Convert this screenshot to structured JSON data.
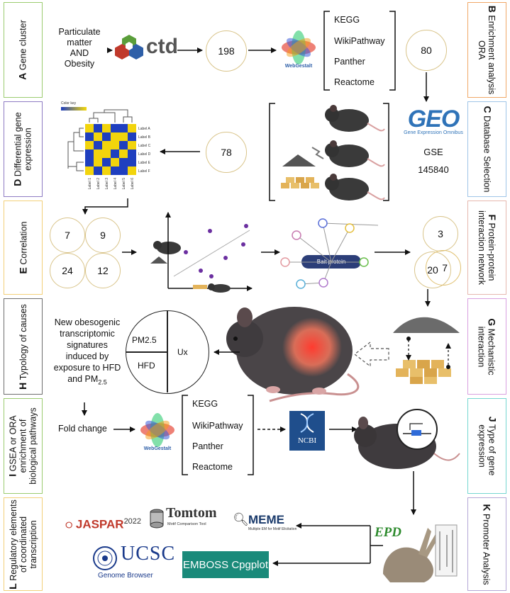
{
  "left_panels": [
    {
      "letter": "A",
      "lines": [
        "Gene cluster"
      ],
      "color": "#9ccc70"
    },
    {
      "letter": "D",
      "lines": [
        "Differential gene",
        "expression"
      ],
      "color": "#8e7cc3"
    },
    {
      "letter": "E",
      "lines": [
        "Correlation"
      ],
      "color": "#f3d07a"
    },
    {
      "letter": "H",
      "lines": [
        "Typology of causes"
      ],
      "color": "#6f6f6f"
    },
    {
      "letter": "I",
      "lines": [
        "GSEA or ORA",
        "enrichment of",
        "biological pathways"
      ],
      "color": "#9ccc70"
    },
    {
      "letter": "L",
      "lines": [
        "Regulatory elements",
        "of coordinated",
        "transcription"
      ],
      "color": "#f3d07a"
    }
  ],
  "right_panels": [
    {
      "letter": "B",
      "lines": [
        "Enrichment analysis",
        "ORA"
      ],
      "color": "#f0a868"
    },
    {
      "letter": "C",
      "lines": [
        "Database Selection"
      ],
      "color": "#9fc5e8"
    },
    {
      "letter": "F",
      "lines": [
        "Protein-protein",
        "interaction network"
      ],
      "color": "#e6b8af"
    },
    {
      "letter": "G",
      "lines": [
        "Mechanistic",
        "interaction"
      ],
      "color": "#d9a0e0"
    },
    {
      "letter": "J",
      "lines": [
        "Type of gene",
        "expression"
      ],
      "color": "#76d7d1"
    },
    {
      "letter": "K",
      "lines": [
        "Promoter Analysis"
      ],
      "color": "#b4a7d6"
    }
  ],
  "row1": {
    "query": [
      "Particulate",
      "matter",
      "AND",
      "Obesity"
    ],
    "ctd_logo": "ctd",
    "count_genes": "198",
    "webgestalt_label": "WebGestalt",
    "pathways": [
      "KEGG",
      "WikiPathway",
      "Panther",
      "Reactome"
    ],
    "count_enriched": "80"
  },
  "row2": {
    "count_deg": "78",
    "heatmap_title": "Color key",
    "heatmap_rows": [
      "Label A",
      "Label B",
      "Label C",
      "Label D",
      "Label E",
      "Label F"
    ],
    "heatmap_cols": [
      "Label 1",
      "Label 2",
      "Label 3",
      "Label 4",
      "Label 5",
      "Label 6"
    ],
    "geo_logo": "GEO",
    "geo_subtitle": "Gene Expression Omnibus",
    "gse_label": "GSE",
    "gse_number": "145840"
  },
  "row3": {
    "venn_left": [
      "7",
      "9",
      "24",
      "12"
    ],
    "bait_label": "Bait protein",
    "venn_right": [
      "3",
      "20",
      "7"
    ]
  },
  "row4": {
    "signatures_text": [
      "New obesogenic",
      "transcriptomic",
      "signatures",
      "induced by",
      "exposure to HFD",
      "and PM"
    ],
    "pm_subscript": "2.5",
    "pie_labels": [
      "PM2.5",
      "HFD",
      "Ux"
    ]
  },
  "row5": {
    "fold_change": "Fold change",
    "webgestalt_label": "WebGestalt",
    "pathways": [
      "KEGG",
      "WikiPathway",
      "Panther",
      "Reactome"
    ],
    "ncbi_label": "NCBI",
    "switch_label": "ON/OFF"
  },
  "row6": {
    "jaspar": "JASPAR",
    "jaspar_year": "2022",
    "tomtom": "Tomtom",
    "tomtom_sub": "Motif Comparison Tool",
    "meme": "MEME",
    "meme_sub": "Multiple EM for Motif Elicitation",
    "ucsc": "UCSC",
    "ucsc_sub": "Genome Browser",
    "emboss": "EMBOSS Cpgplot",
    "epd": "EPD"
  }
}
